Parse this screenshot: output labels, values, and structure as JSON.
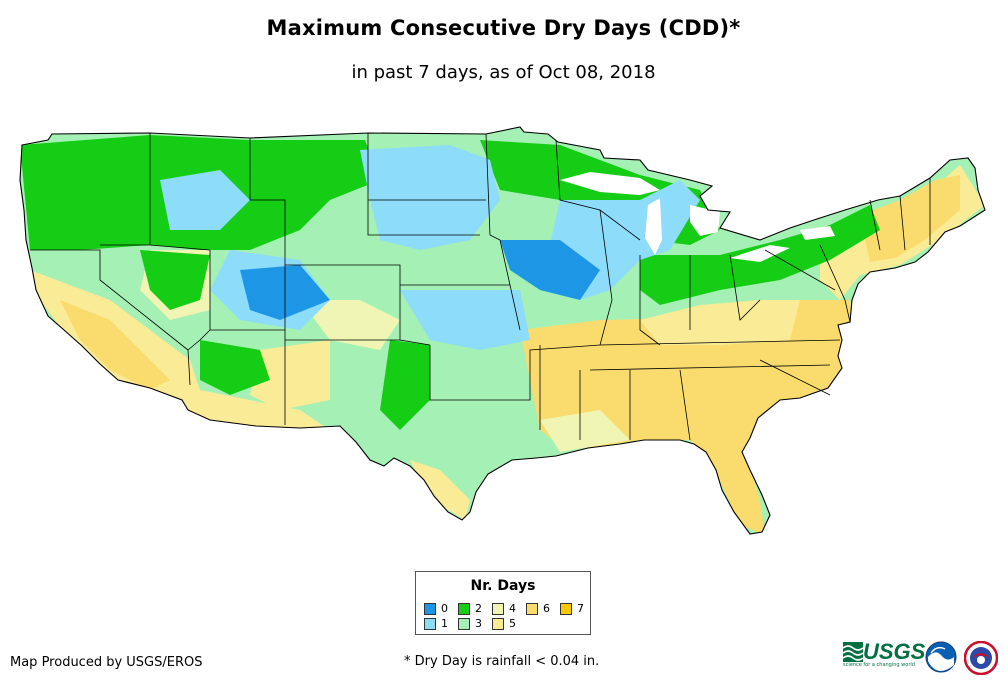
{
  "title": "Maximum Consecutive Dry Days (CDD)*",
  "subtitle": "in past 7 days, as of Oct 08, 2018",
  "legend": {
    "title": "Nr. Days",
    "items": [
      {
        "label": "0",
        "color": "#1e96e6"
      },
      {
        "label": "1",
        "color": "#8cdcfa"
      },
      {
        "label": "2",
        "color": "#14cd14"
      },
      {
        "label": "3",
        "color": "#a5f0b4"
      },
      {
        "label": "4",
        "color": "#f0f5b4"
      },
      {
        "label": "5",
        "color": "#faeb96"
      },
      {
        "label": "6",
        "color": "#fadc6e"
      },
      {
        "label": "7",
        "color": "#fac800"
      }
    ]
  },
  "credit": "Map Produced by USGS/EROS",
  "footnote": "* Dry Day is rainfall < 0.04 in.",
  "logos": {
    "usgs": {
      "text": "USGS",
      "tagline": "science for a changing world",
      "icon": "usgs-logo"
    },
    "noaa": {
      "icon": "noaa-logo"
    },
    "nws": {
      "icon": "nws-logo"
    }
  }
}
